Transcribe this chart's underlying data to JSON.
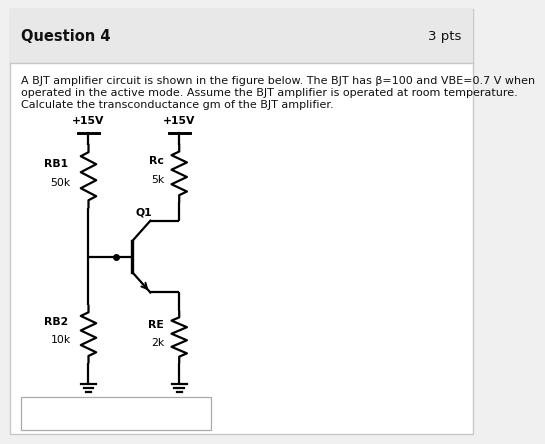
{
  "title": "Question 4",
  "pts": "3 pts",
  "line1": "A BJT amplifier circuit is shown in the figure below. The BJT has β=100 and Vᴀᴇ=0.7 V when",
  "line1_plain": "A BJT amplifier circuit is shown in the figure below. The BJT has β=100 and VBE=0.7 V when",
  "line2": "operated in the active mode. Assume the BJT amplifier is operated at room temperature.",
  "line3": "Calculate the transconductance gm of the BJT amplifier.",
  "bg_color": "#f0f0f0",
  "inner_bg": "#ffffff",
  "border_color": "#c8c8c8",
  "title_bar_color": "#e8e8e8",
  "text_color": "#111111",
  "vcc_left": "+15V",
  "vcc_right": "+15V",
  "rb1_label": "RB1",
  "rb1_val": "50k",
  "rb2_label": "RB2",
  "rb2_val": "10k",
  "rc_label": "Rc",
  "rc_val": "5k",
  "re_label": "RE",
  "re_val": "2k",
  "q1_label": "Q1"
}
